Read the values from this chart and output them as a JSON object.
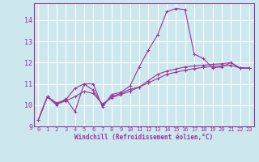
{
  "xlabel": "Windchill (Refroidissement éolien,°C)",
  "bg_color": "#cce8ee",
  "line_color": "#993399",
  "grid_color": "#ffffff",
  "xlim": [
    -0.5,
    23.5
  ],
  "ylim": [
    9,
    14.8
  ],
  "yticks": [
    9,
    10,
    11,
    12,
    13,
    14
  ],
  "xticks": [
    0,
    1,
    2,
    3,
    4,
    5,
    6,
    7,
    8,
    9,
    10,
    11,
    12,
    13,
    14,
    15,
    16,
    17,
    18,
    19,
    20,
    21,
    22,
    23
  ],
  "line1_x": [
    0,
    1,
    2,
    3,
    4,
    5,
    6,
    7,
    8,
    9,
    10,
    11,
    12,
    13,
    14,
    15,
    16,
    17,
    18,
    19,
    20,
    21,
    22,
    23
  ],
  "line1_y": [
    9.3,
    10.4,
    10.0,
    10.3,
    9.7,
    11.0,
    11.0,
    9.9,
    10.5,
    10.6,
    10.9,
    11.8,
    12.6,
    13.3,
    14.4,
    14.55,
    14.5,
    12.4,
    12.2,
    11.75,
    11.8,
    12.0,
    11.75,
    11.75
  ],
  "line2_x": [
    0,
    1,
    2,
    3,
    4,
    5,
    6,
    7,
    8,
    9,
    10,
    11,
    12,
    13,
    14,
    15,
    16,
    17,
    18,
    19,
    20,
    21,
    22,
    23
  ],
  "line2_y": [
    9.3,
    10.4,
    10.1,
    10.25,
    10.8,
    11.0,
    10.7,
    10.0,
    10.4,
    10.55,
    10.75,
    10.85,
    11.15,
    11.45,
    11.6,
    11.7,
    11.8,
    11.85,
    11.88,
    11.92,
    11.95,
    12.0,
    11.75,
    11.75
  ],
  "line3_x": [
    0,
    1,
    2,
    3,
    4,
    5,
    6,
    7,
    8,
    9,
    10,
    11,
    12,
    13,
    14,
    15,
    16,
    17,
    18,
    19,
    20,
    21,
    22,
    23
  ],
  "line3_y": [
    9.3,
    10.4,
    10.05,
    10.2,
    10.4,
    10.65,
    10.55,
    10.05,
    10.35,
    10.5,
    10.65,
    10.85,
    11.05,
    11.25,
    11.45,
    11.55,
    11.65,
    11.72,
    11.78,
    11.83,
    11.85,
    11.88,
    11.75,
    11.75
  ],
  "marker": "+",
  "markersize": 3,
  "linewidth": 0.8
}
